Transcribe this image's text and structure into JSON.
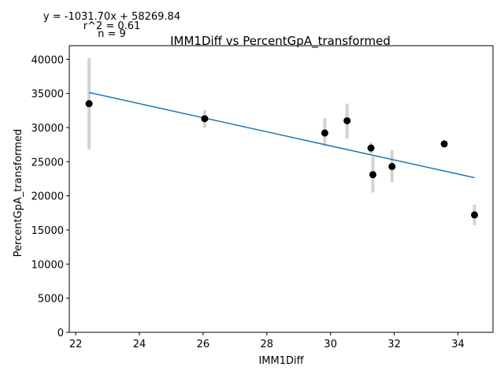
{
  "chart_data": {
    "type": "scatter",
    "title": "IMM1Diff vs PercentGpA_transformed",
    "xlabel": "IMM1Diff",
    "ylabel": "PercentGpA_transformed",
    "xlim": [
      21.8,
      35.1
    ],
    "ylim": [
      0,
      42000
    ],
    "xticks": [
      22,
      24,
      26,
      28,
      30,
      32,
      34
    ],
    "yticks": [
      0,
      5000,
      10000,
      15000,
      20000,
      25000,
      30000,
      35000,
      40000
    ],
    "xtick_labels": [
      "22",
      "24",
      "26",
      "28",
      "30",
      "32",
      "34"
    ],
    "ytick_labels": [
      "0",
      "5000",
      "10000",
      "15000",
      "20000",
      "25000",
      "30000",
      "35000",
      "40000"
    ],
    "annotations": {
      "equation": "y = -1031.70x + 58269.84",
      "r2": "r^2 = 0.61",
      "n": "n = 9"
    },
    "points": [
      {
        "x": 22.42,
        "y": 33500,
        "err_low": 26800,
        "err_high": 40200
      },
      {
        "x": 26.05,
        "y": 31300,
        "err_low": 30000,
        "err_high": 32600
      },
      {
        "x": 29.82,
        "y": 29200,
        "err_low": 27300,
        "err_high": 31400
      },
      {
        "x": 30.52,
        "y": 31000,
        "err_low": 28400,
        "err_high": 33500
      },
      {
        "x": 31.27,
        "y": 27000,
        "err_low": 26200,
        "err_high": 27800
      },
      {
        "x": 31.33,
        "y": 23100,
        "err_low": 20500,
        "err_high": 25800
      },
      {
        "x": 31.93,
        "y": 24300,
        "err_low": 22000,
        "err_high": 26700
      },
      {
        "x": 33.57,
        "y": 27600,
        "err_low": 27100,
        "err_high": 28100
      },
      {
        "x": 34.52,
        "y": 17200,
        "err_low": 15700,
        "err_high": 18700
      }
    ],
    "fit_line": {
      "slope": -1031.7,
      "intercept": 58269.84,
      "x_range": [
        22.42,
        34.52
      ]
    },
    "colors": {
      "points": "#000000",
      "fit_line": "#1f77b4",
      "error_bars": "#d3d3d3"
    },
    "grid": false,
    "legend": "none"
  }
}
